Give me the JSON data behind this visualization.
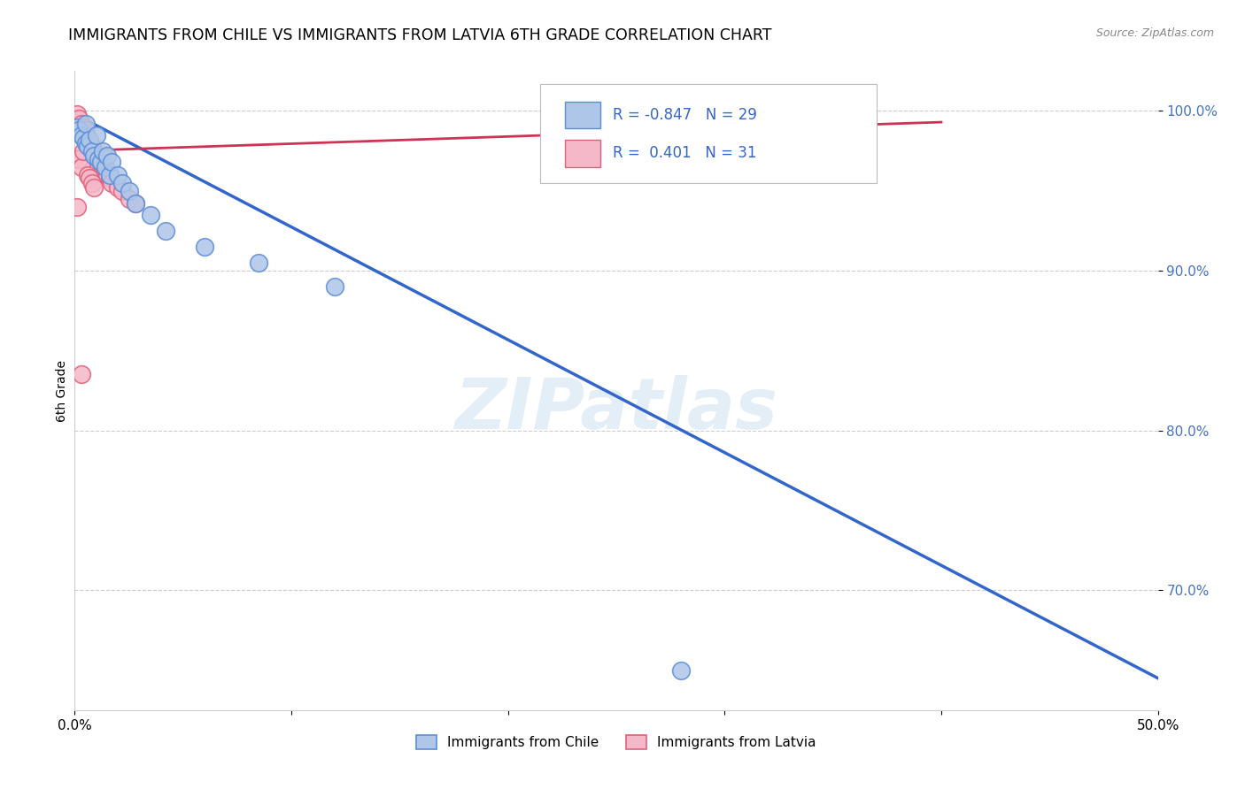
{
  "title": "IMMIGRANTS FROM CHILE VS IMMIGRANTS FROM LATVIA 6TH GRADE CORRELATION CHART",
  "source": "Source: ZipAtlas.com",
  "ylabel": "6th Grade",
  "xmin": 0.0,
  "xmax": 0.5,
  "ymin": 0.625,
  "ymax": 1.025,
  "yticks": [
    0.7,
    0.8,
    0.9,
    1.0
  ],
  "ytick_labels": [
    "70.0%",
    "80.0%",
    "90.0%",
    "100.0%"
  ],
  "xticks": [
    0.0,
    0.1,
    0.2,
    0.3,
    0.4,
    0.5
  ],
  "xtick_labels": [
    "0.0%",
    "",
    "",
    "",
    "",
    "50.0%"
  ],
  "watermark": "ZIPatlas",
  "legend_r_chile": "-0.847",
  "legend_n_chile": "29",
  "legend_r_latvia": "0.401",
  "legend_n_latvia": "31",
  "chile_color": "#aec6e8",
  "chile_edge_color": "#5b8dd9",
  "latvia_color": "#f5b8c8",
  "latvia_edge_color": "#e0607a",
  "chile_line_color": "#3366cc",
  "latvia_line_color": "#cc3355",
  "grid_color": "#cccccc",
  "chile_points_x": [
    0.001,
    0.002,
    0.003,
    0.004,
    0.005,
    0.005,
    0.006,
    0.007,
    0.008,
    0.009,
    0.01,
    0.011,
    0.012,
    0.013,
    0.014,
    0.015,
    0.016,
    0.017,
    0.02,
    0.022,
    0.025,
    0.028,
    0.035,
    0.042,
    0.06,
    0.085,
    0.12,
    0.28,
    0.32
  ],
  "chile_points_y": [
    0.99,
    0.988,
    0.985,
    0.983,
    0.98,
    0.992,
    0.978,
    0.982,
    0.975,
    0.972,
    0.985,
    0.97,
    0.968,
    0.975,
    0.965,
    0.972,
    0.96,
    0.968,
    0.96,
    0.955,
    0.95,
    0.942,
    0.935,
    0.925,
    0.915,
    0.905,
    0.89,
    0.65,
    0.99
  ],
  "latvia_points_x": [
    0.001,
    0.002,
    0.003,
    0.004,
    0.005,
    0.005,
    0.006,
    0.007,
    0.008,
    0.009,
    0.01,
    0.011,
    0.012,
    0.013,
    0.014,
    0.015,
    0.016,
    0.017,
    0.02,
    0.022,
    0.025,
    0.028,
    0.002,
    0.003,
    0.004,
    0.006,
    0.007,
    0.008,
    0.009,
    0.001,
    0.003
  ],
  "latvia_points_y": [
    0.998,
    0.995,
    0.992,
    0.99,
    0.988,
    0.985,
    0.982,
    0.98,
    0.978,
    0.975,
    0.972,
    0.97,
    0.968,
    0.965,
    0.962,
    0.96,
    0.958,
    0.955,
    0.952,
    0.95,
    0.945,
    0.942,
    0.97,
    0.965,
    0.975,
    0.96,
    0.958,
    0.955,
    0.952,
    0.94,
    0.835
  ],
  "chile_trend_x": [
    0.0,
    0.5
  ],
  "chile_trend_y": [
    0.998,
    0.645
  ],
  "latvia_trend_x": [
    0.0,
    0.4
  ],
  "latvia_trend_y": [
    0.975,
    0.993
  ]
}
